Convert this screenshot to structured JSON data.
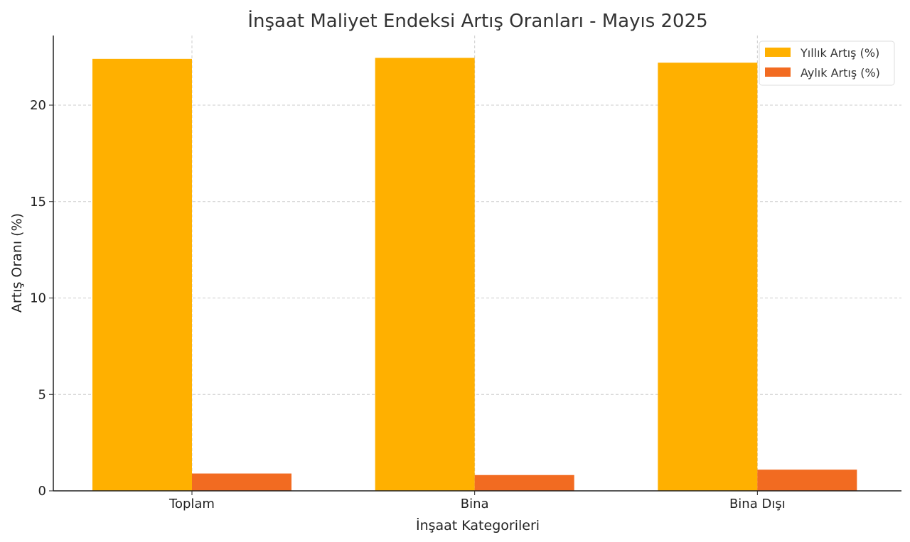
{
  "chart_data": {
    "type": "bar",
    "title": "İnşaat Maliyet Endeksi Artış Oranları - Mayıs 2025",
    "xlabel": "İnşaat Kategorileri",
    "ylabel": "Artış Oranı (%)",
    "categories": [
      "Toplam",
      "Bina",
      "Bina Dışı"
    ],
    "series": [
      {
        "name": "Yıllık Artış (%)",
        "values": [
          22.4,
          22.45,
          22.2
        ],
        "color": "#ffb000"
      },
      {
        "name": "Aylık Artış (%)",
        "values": [
          0.9,
          0.82,
          1.1
        ],
        "color": "#f26b21"
      }
    ],
    "ylim": [
      0,
      23.6
    ],
    "yticks": [
      0,
      5,
      10,
      15,
      20
    ],
    "grid": true,
    "legend_position": "top-right"
  }
}
